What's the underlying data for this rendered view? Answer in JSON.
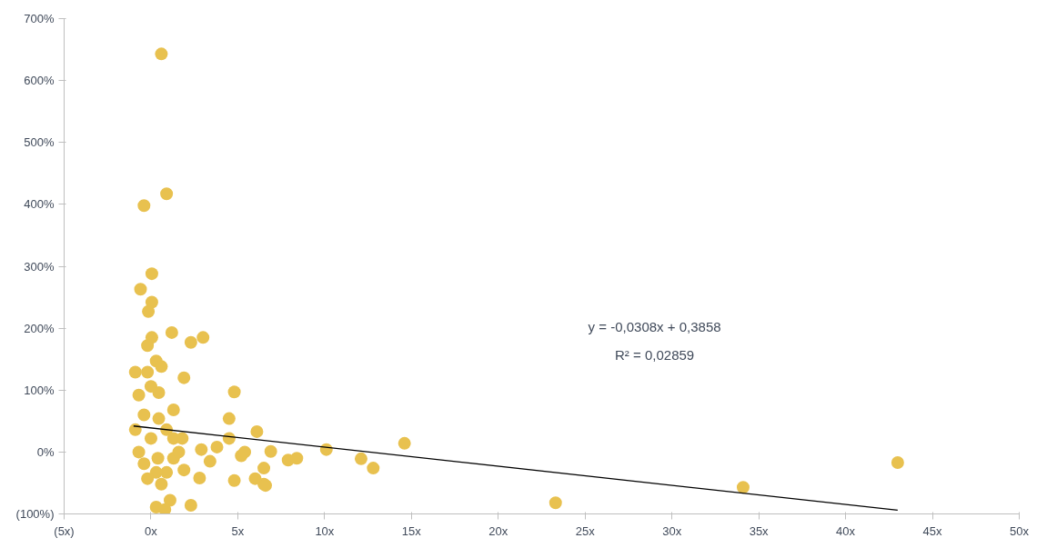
{
  "chart_data": {
    "type": "scatter",
    "grid": false,
    "xlim": [
      -5,
      50
    ],
    "ylim": [
      -100,
      700
    ],
    "xticks": [
      {
        "value": -5,
        "label": "(5x)"
      },
      {
        "value": 0,
        "label": "0x"
      },
      {
        "value": 5,
        "label": "5x"
      },
      {
        "value": 10,
        "label": "10x"
      },
      {
        "value": 15,
        "label": "15x"
      },
      {
        "value": 20,
        "label": "20x"
      },
      {
        "value": 25,
        "label": "25x"
      },
      {
        "value": 30,
        "label": "30x"
      },
      {
        "value": 35,
        "label": "35x"
      },
      {
        "value": 40,
        "label": "40x"
      },
      {
        "value": 45,
        "label": "45x"
      },
      {
        "value": 50,
        "label": "50x"
      }
    ],
    "yticks": [
      {
        "value": -100,
        "label": "(100%)"
      },
      {
        "value": 0,
        "label": "0%"
      },
      {
        "value": 100,
        "label": "100%"
      },
      {
        "value": 200,
        "label": "200%"
      },
      {
        "value": 300,
        "label": "300%"
      },
      {
        "value": 400,
        "label": "400%"
      },
      {
        "value": 500,
        "label": "500%"
      },
      {
        "value": 600,
        "label": "600%"
      },
      {
        "value": 700,
        "label": "700%"
      }
    ],
    "annotations": [
      "y = -0,0308x + 0,3858",
      "R² = 0,02859"
    ],
    "series": [
      {
        "marker": "circle",
        "color": "#e8c14f",
        "x": [
          0.6,
          0.9,
          -0.4,
          0.05,
          -0.6,
          0.05,
          -0.15,
          1.2,
          2.3,
          3.0,
          0.05,
          -0.2,
          1.9,
          4.8,
          4.5,
          6.1,
          6.9,
          7.9,
          6.5,
          6.5,
          6.0,
          4.8,
          2.8,
          2.3,
          1.1,
          0.3,
          0.8,
          5.2,
          4.5,
          3.8,
          3.4,
          2.9,
          1.9,
          1.3,
          0.9,
          -0.2,
          0.3,
          0.6,
          -0.9,
          -0.7,
          0.0,
          0.45,
          -0.4,
          0.45,
          0.9,
          1.3,
          1.8,
          -0.9,
          -0.7,
          0.0,
          -0.4,
          0.3,
          -0.2,
          0.6,
          0.4,
          1.3,
          1.6,
          8.4,
          10.1,
          12.1,
          12.8,
          14.6,
          5.4,
          6.6,
          23.3,
          34.1,
          43.0
        ],
        "values": [
          643,
          417,
          398,
          288,
          263,
          242,
          227,
          193,
          177,
          185,
          185,
          172,
          120,
          97,
          54,
          33,
          1,
          -13,
          -26,
          -52,
          -43,
          -46,
          -42,
          -86,
          -78,
          -89,
          -93,
          -6,
          22,
          8,
          -15,
          4,
          -29,
          68,
          -33,
          129,
          147,
          138,
          129,
          92,
          106,
          96,
          60,
          54,
          36,
          22,
          22,
          36,
          0,
          22,
          -19,
          -33,
          -43,
          -52,
          -10,
          -10,
          0,
          -10,
          4,
          -11,
          -26,
          14,
          0,
          -54,
          -82,
          -57,
          -17
        ]
      },
      {
        "type": "line",
        "color": "#000000",
        "x": [
          -1,
          43
        ],
        "values": [
          42,
          -94
        ]
      }
    ]
  }
}
